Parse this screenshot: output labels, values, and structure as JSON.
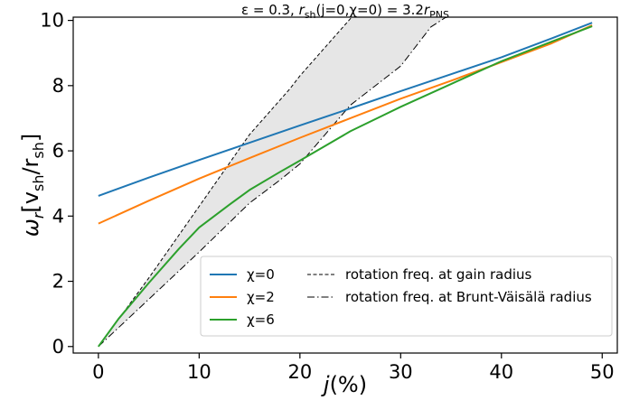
{
  "chart_data": {
    "type": "line",
    "title": "ε = 0.3, r_sh(j=0,χ=0) = 3.2r_PNS",
    "title_parts": {
      "eps": "ε = 0.3, ",
      "r": "r",
      "sh": "sh",
      "mid": "(j=0,χ=0) = 3.2",
      "r2": "r",
      "pns": "PNS"
    },
    "xlabel": "j(%)",
    "xlabel_parts": {
      "j": "j",
      "rest": "(%)"
    },
    "ylabel": "ω_r[v_sh/r_sh]",
    "ylabel_parts": {
      "omega": "ω",
      "r": "r",
      "open": "[v",
      "sh1": "sh",
      "slash": "/r",
      "sh2": "sh",
      "close": "]"
    },
    "xlim": [
      -2.5,
      51.5
    ],
    "ylim": [
      -0.2,
      10.1
    ],
    "xticks": [
      0,
      10,
      20,
      30,
      40,
      50
    ],
    "yticks": [
      0,
      2,
      4,
      6,
      8,
      10
    ],
    "grid": false,
    "legend_placement": "lower-right",
    "series": [
      {
        "name": "χ=0",
        "color": "#1f77b4",
        "style": "solid",
        "x": [
          0,
          5,
          10,
          15,
          20,
          25,
          30,
          35,
          40,
          45,
          49
        ],
        "y": [
          4.62,
          5.18,
          5.72,
          6.25,
          6.78,
          7.3,
          7.83,
          8.35,
          8.87,
          9.45,
          9.93
        ]
      },
      {
        "name": "χ=2",
        "color": "#ff7f0e",
        "style": "solid",
        "x": [
          0,
          5,
          10,
          15,
          20,
          25,
          30,
          35,
          40,
          45,
          49
        ],
        "y": [
          3.77,
          4.47,
          5.15,
          5.78,
          6.4,
          7.0,
          7.6,
          8.15,
          8.72,
          9.3,
          9.85
        ]
      },
      {
        "name": "χ=6",
        "color": "#2ca02c",
        "style": "solid",
        "x": [
          0,
          2,
          5,
          8,
          10,
          13,
          15,
          18,
          20,
          25,
          30,
          35,
          40,
          45,
          49
        ],
        "y": [
          0.0,
          0.85,
          1.95,
          3.0,
          3.65,
          4.35,
          4.8,
          5.35,
          5.7,
          6.6,
          7.35,
          8.05,
          8.75,
          9.35,
          9.82
        ]
      },
      {
        "name": "rotation freq. at gain radius",
        "color": "#000000",
        "style": "dashed",
        "x": [
          0,
          5,
          10,
          15,
          17,
          19,
          20,
          22,
          24,
          25,
          26
        ],
        "y": [
          0.0,
          2.1,
          4.3,
          6.5,
          7.2,
          7.9,
          8.3,
          9.0,
          9.7,
          10.05,
          10.4
        ]
      },
      {
        "name": "rotation freq. at Brunt-Väisälä radius",
        "color": "#000000",
        "style": "dashdot",
        "x": [
          0,
          5,
          10,
          15,
          18,
          20,
          25,
          30,
          33,
          34.5
        ],
        "y": [
          0.0,
          1.45,
          2.9,
          4.4,
          5.1,
          5.6,
          7.4,
          8.6,
          9.8,
          10.1
        ]
      }
    ],
    "shaded_region": {
      "between": [
        "rotation freq. at gain radius",
        "rotation freq. at Brunt-Väisälä radius"
      ],
      "color": "#e6e6e6"
    }
  }
}
